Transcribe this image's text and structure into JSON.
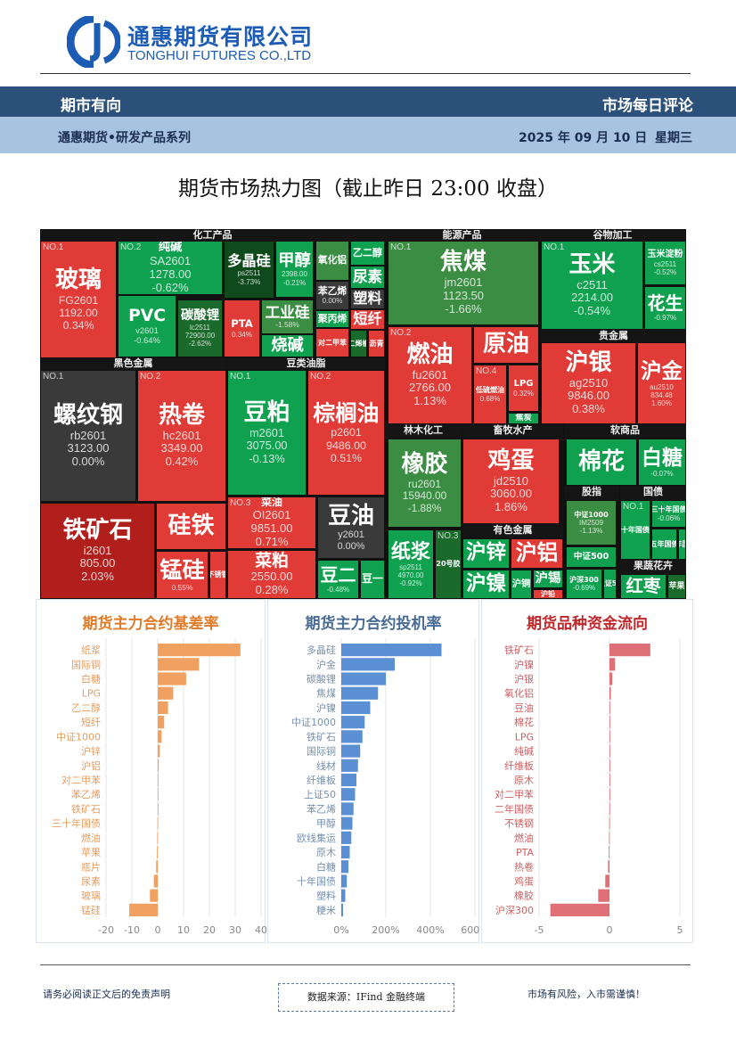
{
  "header": {
    "company_cn": "通惠期货有限公司",
    "company_en": "TONGHUI FUTURES CO.,LTD",
    "column": "期市有向",
    "report_type": "市场每日评论",
    "series": "通惠期货•研发产品系列",
    "date": "2025 年 09 月 10 日",
    "weekday": "星期三"
  },
  "title": "期货市场热力图（截止昨日 23:00 收盘）",
  "colors": {
    "red": "#e03b37",
    "dark_red": "#b01f1b",
    "green": "#10a150",
    "mid_green": "#3a8d42",
    "dark_green": "#1a6a2c",
    "deepest_green": "#0e4a1c",
    "flat": "#3a3a3a",
    "brand": "#1c5cb4"
  },
  "sections": [
    "化工产品",
    "能源产品",
    "谷物加工",
    "黑色金属",
    "豆类油脂",
    "贵金属",
    "林木化工",
    "畜牧水产",
    "软商品",
    "有色金属",
    "股指",
    "国债",
    "果蔬花卉"
  ],
  "tiles": [
    {
      "name": "玻璃",
      "no": "NO.1",
      "code": "FG2601",
      "price": "1192.00",
      "change": "0.34%",
      "c": "red"
    },
    {
      "name": "纯碱",
      "no": "NO.2",
      "code": "SA2601",
      "price": "1278.00",
      "change": "-0.62%",
      "c": "green"
    },
    {
      "name": "PVC",
      "code": "v2601",
      "change": "-0.64%",
      "c": "green"
    },
    {
      "name": "碳酸锂",
      "code": "lc2511",
      "price": "72900.00",
      "change": "-2.62%",
      "c": "dark_green"
    },
    {
      "name": "多晶硅",
      "code": "ps2511",
      "change": "-3.73%",
      "c": "deepest_green"
    },
    {
      "name": "甲醇",
      "price": "2398.00",
      "change": "-0.21%",
      "c": "green"
    },
    {
      "name": "氧化铝",
      "c": "mid_green"
    },
    {
      "name": "乙二醇",
      "c": "green"
    },
    {
      "name": "尿素",
      "c": "green"
    },
    {
      "name": "苯乙烯",
      "change": "0.00%",
      "c": "flat"
    },
    {
      "name": "塑料",
      "c": "flat"
    },
    {
      "name": "聚丙烯",
      "c": "green"
    },
    {
      "name": "短纤",
      "c": "red"
    },
    {
      "name": "PTA",
      "change": "0.34%",
      "c": "red"
    },
    {
      "name": "工业硅",
      "change": "-1.58%",
      "c": "mid_green"
    },
    {
      "name": "烧碱",
      "c": "green"
    },
    {
      "name": "对二甲苯",
      "c": "red"
    },
    {
      "name": "丁二烯橡胶",
      "c": "dark_green"
    },
    {
      "name": "沥青",
      "c": "red"
    },
    {
      "name": "螺纹钢",
      "no": "NO.1",
      "code": "rb2601",
      "price": "3123.00",
      "change": "0.00%",
      "c": "flat"
    },
    {
      "name": "热卷",
      "no": "NO.2",
      "code": "hc2601",
      "price": "3349.00",
      "change": "0.42%",
      "c": "red"
    },
    {
      "name": "铁矿石",
      "code": "i2601",
      "price": "805.00",
      "change": "2.03%",
      "c": "dark_red"
    },
    {
      "name": "硅铁",
      "c": "red"
    },
    {
      "name": "锰硅",
      "change": "0.55%",
      "c": "red"
    },
    {
      "name": "不锈钢",
      "c": "red"
    },
    {
      "name": "豆粕",
      "no": "NO.1",
      "code": "m2601",
      "price": "3075.00",
      "change": "-0.13%",
      "c": "green"
    },
    {
      "name": "棕榈油",
      "no": "NO.2",
      "code": "p2601",
      "price": "9486.00",
      "change": "0.51%",
      "c": "red"
    },
    {
      "name": "菜油",
      "no": "NO.3",
      "code": "OI2601",
      "price": "9851.00",
      "change": "0.71%",
      "c": "red"
    },
    {
      "name": "豆油",
      "code": "y2601",
      "change": "0.00%",
      "c": "flat"
    },
    {
      "name": "菜粕",
      "price": "2550.00",
      "change": "0.28%",
      "c": "red"
    },
    {
      "name": "豆二",
      "change": "-0.48%",
      "c": "green"
    },
    {
      "name": "豆一",
      "c": "green"
    },
    {
      "name": "焦煤",
      "no": "NO.1",
      "code": "jm2601",
      "price": "1123.50",
      "change": "-1.66%",
      "c": "mid_green"
    },
    {
      "name": "燃油",
      "no": "NO.2",
      "code": "fu2601",
      "price": "2766.00",
      "change": "1.13%",
      "c": "red"
    },
    {
      "name": "原油",
      "c": "red"
    },
    {
      "name": "低硫燃油",
      "no": "NO.4",
      "change": "0.68%",
      "c": "red"
    },
    {
      "name": "LPG",
      "change": "0.32%",
      "c": "red"
    },
    {
      "name": "焦炭",
      "c": "green"
    },
    {
      "name": "玉米",
      "no": "NO.1",
      "code": "c2511",
      "price": "2214.00",
      "change": "-0.54%",
      "c": "green"
    },
    {
      "name": "玉米淀粉",
      "code": "cs2511",
      "change": "-0.52%",
      "c": "green"
    },
    {
      "name": "花生",
      "change": "-0.97%",
      "c": "green"
    },
    {
      "name": "沪银",
      "code": "ag2510",
      "price": "9846.00",
      "change": "0.38%",
      "c": "red"
    },
    {
      "name": "沪金",
      "code": "au2510",
      "price": "834.48",
      "change": "1.60%",
      "c": "red"
    },
    {
      "name": "橡胶",
      "code": "ru2601",
      "price": "15940.00",
      "change": "-1.88%",
      "c": "mid_green"
    },
    {
      "name": "纸浆",
      "code": "sp2511",
      "price": "4970.00",
      "change": "-0.92%",
      "c": "green"
    },
    {
      "name": "20号胶",
      "no": "NO.3",
      "c": "dark_green"
    },
    {
      "name": "鸡蛋",
      "code": "jd2510",
      "price": "3060.00",
      "change": "1.86%",
      "c": "red"
    },
    {
      "name": "沪锌",
      "c": "green"
    },
    {
      "name": "沪铝",
      "c": "red"
    },
    {
      "name": "沪镍",
      "c": "green"
    },
    {
      "name": "沪铜",
      "c": "green"
    },
    {
      "name": "沪锡",
      "c": "green"
    },
    {
      "name": "沪铅",
      "c": "red"
    },
    {
      "name": "棉花",
      "c": "green"
    },
    {
      "name": "白糖",
      "change": "-0.07%",
      "c": "green"
    },
    {
      "name": "中证1000",
      "code": "IM2509",
      "change": "-1.13%",
      "c": "mid_green"
    },
    {
      "name": "中证500",
      "c": "green"
    },
    {
      "name": "沪深300",
      "change": "-0.69%",
      "c": "green"
    },
    {
      "name": "上证50",
      "c": "green"
    },
    {
      "name": "十年国债",
      "no": "NO.1",
      "c": "green"
    },
    {
      "name": "三十年国债",
      "change": "-0.06%",
      "c": "green"
    },
    {
      "name": "五年国债",
      "c": "green"
    },
    {
      "name": "二年国债",
      "c": "green"
    },
    {
      "name": "红枣",
      "c": "green"
    },
    {
      "name": "苹果",
      "c": "dark_green"
    }
  ],
  "chart_data": [
    {
      "type": "bar",
      "orientation": "horizontal",
      "title": "期货主力合约基差率",
      "color": "#f0a060",
      "title_color": "#e07b2a",
      "xlim": [
        -20,
        40
      ],
      "xticks": [
        "-20",
        "-10",
        "0",
        "10",
        "20",
        "30",
        "40"
      ],
      "categories": [
        "纸浆",
        "国际铜",
        "白糖",
        "LPG",
        "乙二醇",
        "短纤",
        "中证1000",
        "沪锌",
        "沪铝",
        "对二甲苯",
        "苯乙烯",
        "铁矿石",
        "三十年国债",
        "燃油",
        "苹果",
        "瓶片",
        "尿素",
        "玻璃",
        "锰硅"
      ],
      "values": [
        32,
        16,
        11,
        6,
        4,
        2.5,
        1.5,
        0.8,
        0.4,
        0.1,
        0,
        0,
        -0.1,
        -0.2,
        -0.3,
        -0.6,
        -1.5,
        -3,
        -11
      ]
    },
    {
      "type": "bar",
      "orientation": "horizontal",
      "title": "期货主力合约投机率",
      "color": "#5b8fd4",
      "title_color": "#4a6b96",
      "xlim": [
        0,
        600
      ],
      "xticks": [
        "0%",
        "200%",
        "400%",
        "600%"
      ],
      "categories": [
        "多晶硅",
        "沪金",
        "碳酸锂",
        "焦煤",
        "沪镍",
        "中证1000",
        "铁矿石",
        "国际铜",
        "线材",
        "纤维板",
        "上证50",
        "苯乙烯",
        "甲醇",
        "欧线集运",
        "原木",
        "白糖",
        "十年国债",
        "塑料",
        "粳米"
      ],
      "values": [
        450,
        240,
        200,
        165,
        130,
        105,
        95,
        85,
        75,
        68,
        62,
        55,
        50,
        45,
        38,
        32,
        25,
        18,
        8
      ]
    },
    {
      "type": "bar",
      "orientation": "horizontal",
      "title": "期货品种资金流向",
      "color": "#e07078",
      "title_color": "#c0282c",
      "xlim": [
        -5,
        5
      ],
      "xticks": [
        "-5",
        "0",
        "5"
      ],
      "categories": [
        "铁矿石",
        "沪镍",
        "沪银",
        "氧化铝",
        "豆油",
        "棉花",
        "LPG",
        "纯碱",
        "纤维板",
        "原木",
        "对二甲苯",
        "二年国债",
        "不锈钢",
        "燃油",
        "PTA",
        "热卷",
        "鸡蛋",
        "橡胶",
        "沪深300"
      ],
      "values": [
        2.9,
        0.4,
        0.2,
        0.1,
        0.05,
        0.03,
        0.02,
        0.01,
        0,
        0,
        0,
        -0.01,
        -0.02,
        -0.03,
        -0.05,
        -0.1,
        -0.3,
        -0.8,
        -4.2
      ]
    }
  ],
  "footer": {
    "disclaimer": "请务必阅读正文后的免责声明",
    "source": "数据来源：IFind 金融终端",
    "risk": "市场有风险，入市需谨慎！"
  }
}
